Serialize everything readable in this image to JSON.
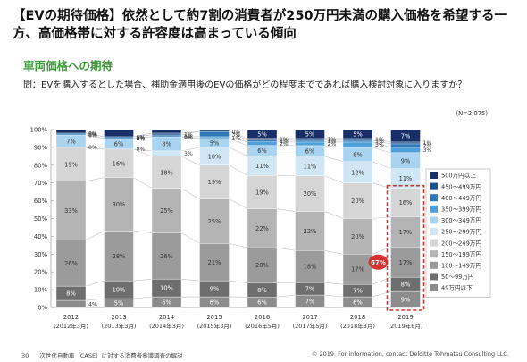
{
  "headline": "【EVの期待価格】依然として約7割の消費者が250万円未満の購入価格を希望する一方、高価格帯に対する許容度は高まっている傾向",
  "section_title": "車両価格への期待",
  "question": "問：EVを購入するとした場合、補助金適用後のEVの価格がどの程度までであれば購入検討対象に入りますか？",
  "footer": {
    "page": "30",
    "report": "次世代自動車（CASE）に対する消費者意識調査の解説",
    "copyright": "© 2019. For information, contact Deloitte Tohmatsu Consulting LLC."
  },
  "chart_data": {
    "type": "bar",
    "stacked": true,
    "normalized": true,
    "sample_size": "(N=2,075)",
    "ylim": [
      0,
      100
    ],
    "yticks": [
      "0%",
      "10%",
      "20%",
      "30%",
      "40%",
      "50%",
      "60%",
      "70%",
      "80%",
      "90%",
      "100%"
    ],
    "categories": [
      "2012",
      "2013",
      "2014",
      "2015",
      "2016",
      "2017",
      "2018",
      "2019"
    ],
    "category_sublabels": [
      "(2012年3月)",
      "(2013年3月)",
      "(2014年3月)",
      "(2015年3月)",
      "(2016年5月)",
      "(2017年5月)",
      "(2018年3月)",
      "(2019年8月)"
    ],
    "legend_position": "right",
    "series": [
      {
        "name": "49万円以下",
        "color": "#8c8c8c",
        "values": [
          4,
          5,
          6,
          6,
          6,
          7,
          6,
          9
        ],
        "labels": [
          "4%",
          "5%",
          "6%",
          "6%",
          "6%",
          "7%",
          "6%",
          "9%"
        ]
      },
      {
        "name": "50～99万円",
        "color": "#6e6e6e",
        "values": [
          8,
          10,
          10,
          9,
          8,
          7,
          7,
          8
        ],
        "labels": [
          "8%",
          "10%",
          "10%",
          "9%",
          "8%",
          "7%",
          "7%",
          "8%"
        ]
      },
      {
        "name": "100～149万円",
        "color": "#9b9b9b",
        "values": [
          26,
          28,
          26,
          21,
          20,
          18,
          17,
          17
        ],
        "labels": [
          "26%",
          "28%",
          "26%",
          "21%",
          "20%",
          "18%",
          "17%",
          "17%"
        ]
      },
      {
        "name": "150～199万円",
        "color": "#b4b4b4",
        "values": [
          33,
          30,
          25,
          25,
          22,
          22,
          20,
          17
        ],
        "labels": [
          "33%",
          "30%",
          "25%",
          "25%",
          "22%",
          "22%",
          "20%",
          "17%"
        ]
      },
      {
        "name": "200～249万円",
        "color": "#d5d5d5",
        "values": [
          19,
          16,
          18,
          19,
          19,
          20,
          20,
          16
        ],
        "labels": [
          "19%",
          "16%",
          "18%",
          "19%",
          "19%",
          "20%",
          "20%",
          "16%"
        ]
      },
      {
        "name": "250～299万円",
        "color": "#cfe6f5",
        "values": [
          0,
          0,
          3,
          10,
          11,
          11,
          12,
          11
        ],
        "labels": [
          "0%",
          "0%",
          "3%",
          "10%",
          "11%",
          "11%",
          "12%",
          "11%"
        ]
      },
      {
        "name": "300～349万円",
        "color": "#a9d4ef",
        "values": [
          7,
          6,
          8,
          5,
          6,
          6,
          8,
          9
        ],
        "labels": [
          "7%",
          "6%",
          "8%",
          "5%",
          "6%",
          "6%",
          "8%",
          "9%"
        ]
      },
      {
        "name": "350～399万円",
        "color": "#4ea0d8",
        "values": [
          0,
          0,
          0,
          1,
          2,
          2,
          3,
          3
        ],
        "labels": [
          "0%",
          "0%",
          "0%",
          "1%",
          "2%",
          "2%",
          "3%",
          "3%"
        ]
      },
      {
        "name": "400～449万円",
        "color": "#2f78b7",
        "values": [
          1,
          1,
          1,
          3,
          1,
          1,
          1,
          2
        ],
        "labels": [
          "1%",
          "1%",
          "1%",
          "3%",
          "1%",
          "1%",
          "1%",
          "2%"
        ]
      },
      {
        "name": "450～499万円",
        "color": "#1f4f8c",
        "values": [
          0,
          0,
          1,
          0,
          1,
          1,
          1,
          1
        ],
        "labels": [
          "0%",
          "0%",
          "1%",
          "0%",
          "1%",
          "1%",
          "1%",
          "1%"
        ]
      },
      {
        "name": "500万円以上",
        "color": "#172e66",
        "values": [
          2,
          4,
          2,
          1,
          5,
          5,
          5,
          7
        ],
        "labels": [
          "",
          "",
          "",
          "",
          "5%",
          "5%",
          "5%",
          "7%"
        ]
      }
    ],
    "highlight": {
      "category": "2019",
      "text": "67%",
      "color": "#d6322e"
    }
  }
}
